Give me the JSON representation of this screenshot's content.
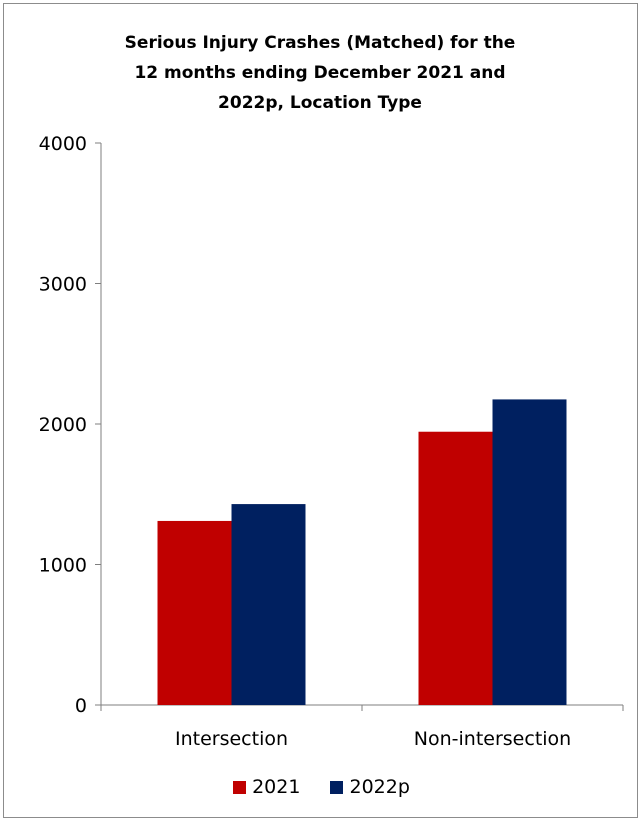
{
  "chart_data": {
    "type": "bar",
    "title": "Serious Injury Crashes (Matched) for the 12 months ending December 2021 and 2022p, Location Type",
    "title_lines": [
      "Serious Injury Crashes (Matched) for the",
      "12 months ending December 2021 and",
      "2022p, Location Type"
    ],
    "categories": [
      "Intersection",
      "Non-intersection"
    ],
    "series": [
      {
        "name": "2021",
        "values": [
          1310,
          1945
        ],
        "color": "#c00000"
      },
      {
        "name": "2022p",
        "values": [
          1430,
          2175
        ],
        "color": "#002060"
      }
    ],
    "ylim": [
      0,
      4000
    ],
    "yticks": [
      "0",
      "1000",
      "2000",
      "3000",
      "4000"
    ],
    "xlabel": "",
    "ylabel": "",
    "grid": false,
    "legend_position": "bottom"
  }
}
